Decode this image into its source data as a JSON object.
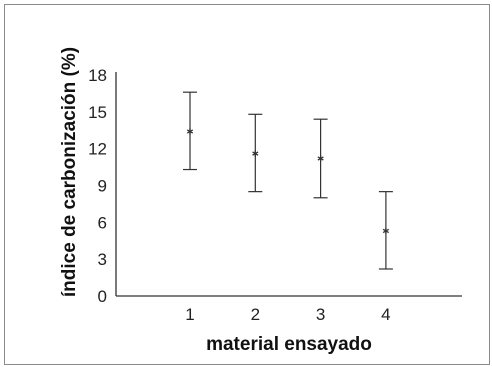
{
  "chart_data": {
    "type": "scatter",
    "title": "",
    "xlabel": "material ensayado",
    "ylabel": "índice de carbonización (%)",
    "x_categories": [
      "1",
      "2",
      "3",
      "4"
    ],
    "y_ticks": [
      "0",
      "3",
      "6",
      "9",
      "12",
      "15",
      "18"
    ],
    "ylim": [
      0,
      18
    ],
    "grid": false,
    "series": [
      {
        "values": [
          13.4,
          11.6,
          11.2,
          5.3
        ],
        "error_low": [
          10.3,
          8.5,
          8.0,
          2.2
        ],
        "error_high": [
          16.6,
          14.8,
          14.4,
          8.5
        ]
      }
    ],
    "marker": "asterisk",
    "colors": {
      "axis": "#333333",
      "marker": "#333333",
      "text": "#222222",
      "frame": "#8a8a8a"
    }
  }
}
